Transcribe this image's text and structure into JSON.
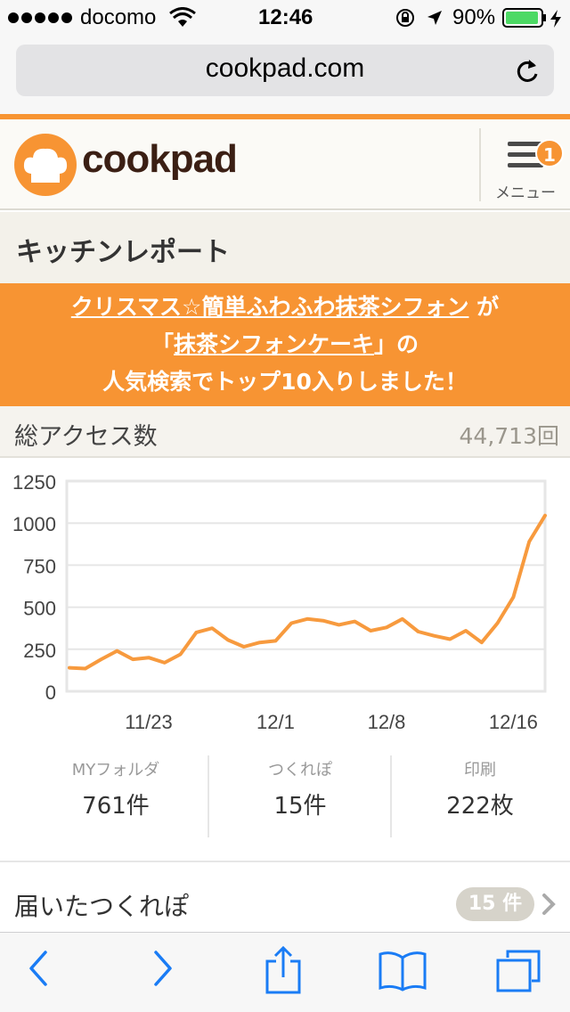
{
  "status_bar": {
    "carrier": "docomo",
    "time": "12:46",
    "battery": "90%"
  },
  "browser": {
    "url": "cookpad.com"
  },
  "header": {
    "logo_text": "cookpad",
    "menu_label": "メニュー",
    "menu_badge": "1"
  },
  "page": {
    "section_title": "キッチンレポート"
  },
  "notice": {
    "recipe_link": "クリスマス☆簡単ふわふわ抹茶シフォン",
    "text_ga": " が",
    "quote_open": "「",
    "keyword_link": "抹茶シフォンケーキ",
    "quote_close": "」の",
    "line3": "人気検索でトップ10入りしました！"
  },
  "access": {
    "label": "総アクセス数",
    "value": "44,713回"
  },
  "chart_data": {
    "type": "line",
    "y_ticks": [
      "1250",
      "1000",
      "750",
      "500",
      "250",
      "0"
    ],
    "x_tick_labels": [
      "11/23",
      "12/1",
      "12/8",
      "12/16"
    ],
    "ylim": [
      0,
      1250
    ],
    "grid": true,
    "color": "#f79a3e",
    "series": [
      {
        "values": [
          140,
          135,
          190,
          240,
          190,
          200,
          170,
          220,
          350,
          375,
          305,
          265,
          290,
          300,
          405,
          430,
          420,
          395,
          415,
          360,
          380,
          430,
          355,
          330,
          310,
          360,
          290,
          405,
          560,
          890,
          1045
        ]
      }
    ],
    "x_tick_indices": [
      5,
      13,
      20,
      28
    ]
  },
  "stats": [
    {
      "label": "MYフォルダ",
      "value": "761件"
    },
    {
      "label": "つくれぽ",
      "value": "15件"
    },
    {
      "label": "印刷",
      "value": "222枚"
    }
  ],
  "tsukurepo": {
    "label": "届いたつくれぽ",
    "count": "15 件"
  },
  "colors": {
    "brand_orange": "#f79433",
    "ios_blue": "#1a7cf5"
  }
}
